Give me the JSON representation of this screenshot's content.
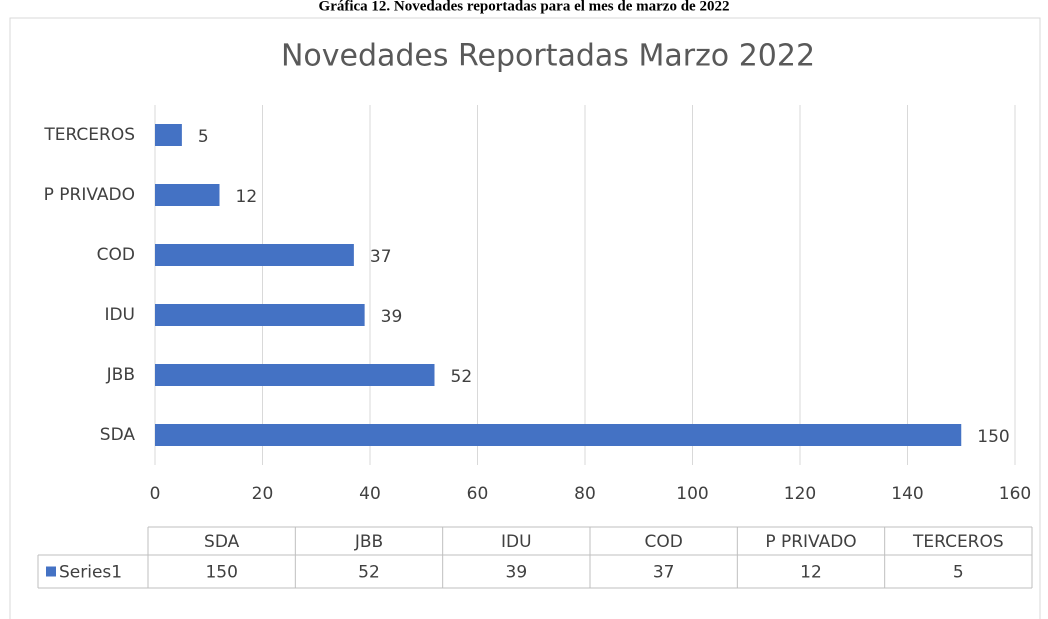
{
  "caption": "Gráfica 12. Novedades reportadas para el mes de marzo de 2022",
  "chart_data": {
    "type": "barh",
    "title": "Novedades Reportadas Marzo 2022",
    "categories": [
      "SDA",
      "JBB",
      "IDU",
      "COD",
      "P PRIVADO",
      "TERCEROS"
    ],
    "series": [
      {
        "name": "Series1",
        "color": "#4472c4",
        "values": [
          150,
          52,
          39,
          37,
          12,
          5
        ]
      }
    ],
    "xlim": [
      0,
      160
    ],
    "xticks": [
      0,
      20,
      40,
      60,
      80,
      100,
      120,
      140,
      160
    ],
    "grid": true,
    "data_table": true
  }
}
